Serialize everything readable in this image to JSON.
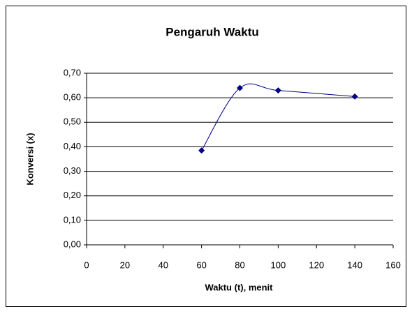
{
  "chart_data": {
    "type": "line",
    "title": "Pengaruh Waktu",
    "x_label": "Waktu (t), menit",
    "y_label": "Konversi (x)",
    "smooth": true,
    "grid": true,
    "series": [
      {
        "name": "Konversi",
        "color": "#000080",
        "x": [
          60,
          80,
          100,
          140
        ],
        "values": [
          0.385,
          0.64,
          0.63,
          0.605
        ]
      }
    ],
    "xlim": [
      0,
      160
    ],
    "xticks": [
      0,
      20,
      40,
      60,
      80,
      100,
      120,
      140,
      160
    ],
    "ylim": [
      0,
      0.7
    ],
    "yticks": [
      {
        "value": 0,
        "label": "0,00"
      },
      {
        "value": 0.1,
        "label": "0,10"
      },
      {
        "value": 0.2,
        "label": "0,20"
      },
      {
        "value": 0.3,
        "label": "0,30"
      },
      {
        "value": 0.4,
        "label": "0,40"
      },
      {
        "value": 0.5,
        "label": "0,50"
      },
      {
        "value": 0.6,
        "label": "0,60"
      },
      {
        "value": 0.7,
        "label": "0,70"
      }
    ]
  }
}
